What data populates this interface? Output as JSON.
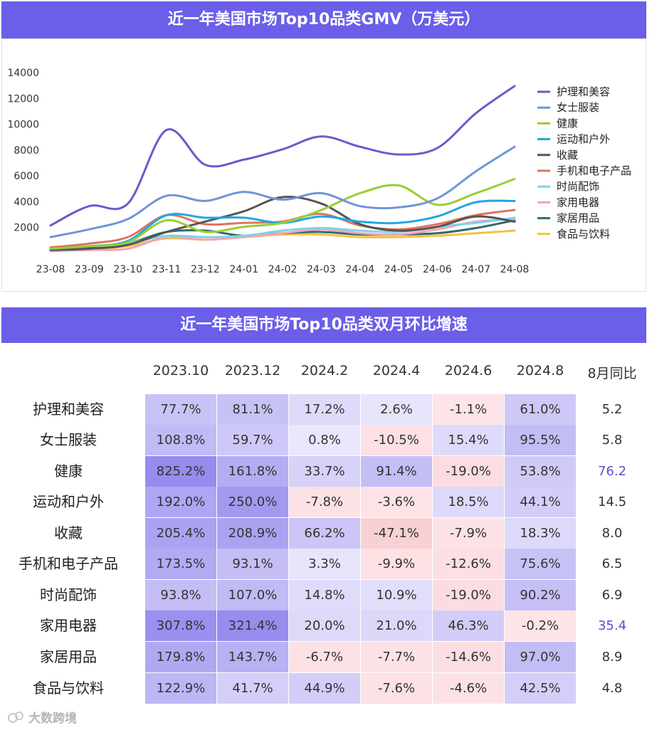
{
  "chart_title": "近一年美国市场Top10品类GMV（万美元）",
  "table_title": "近一年美国市场Top10品类双月环比增速",
  "watermark": "大数跨境",
  "chart_data": [
    {
      "type": "line",
      "title": "近一年美国市场Top10品类GMV（万美元）",
      "x": [
        "23-08",
        "23-09",
        "23-10",
        "23-11",
        "23-12",
        "24-01",
        "24-02",
        "24-03",
        "24-04",
        "24-05",
        "24-06",
        "24-07",
        "24-08"
      ],
      "ylim": [
        0,
        14000
      ],
      "yticks": [
        2000,
        4000,
        6000,
        8000,
        10000,
        12000,
        14000
      ],
      "legend_position": "right",
      "series": [
        {
          "name": "护理和美容",
          "color": "#6a5acd",
          "values": [
            2100,
            3600,
            3800,
            9500,
            6800,
            7200,
            8000,
            9000,
            8200,
            7600,
            8100,
            10800,
            12900
          ]
        },
        {
          "name": "女士服装",
          "color": "#6f95d8",
          "values": [
            1200,
            1800,
            2600,
            4400,
            4000,
            4700,
            4100,
            4600,
            3600,
            3500,
            4200,
            6300,
            8200
          ]
        },
        {
          "name": "健康",
          "color": "#9acd32",
          "values": [
            300,
            500,
            800,
            2500,
            1600,
            2000,
            2300,
            3300,
            4600,
            5200,
            3700,
            4600,
            5700
          ]
        },
        {
          "name": "运动和户外",
          "color": "#1ea8e0",
          "values": [
            300,
            500,
            900,
            2900,
            2700,
            2700,
            2300,
            2800,
            2400,
            2300,
            2800,
            3900,
            4000
          ]
        },
        {
          "name": "收藏",
          "color": "#555555",
          "values": [
            200,
            300,
            600,
            1600,
            2400,
            3200,
            4300,
            3800,
            2200,
            1700,
            2000,
            2800,
            2400
          ]
        },
        {
          "name": "手机和电子产品",
          "color": "#e0735e",
          "values": [
            400,
            700,
            1200,
            2900,
            2200,
            2300,
            2400,
            3000,
            2100,
            1800,
            2200,
            2900,
            3300
          ]
        },
        {
          "name": "时尚配饰",
          "color": "#7fd3e8",
          "values": [
            200,
            300,
            700,
            1300,
            1200,
            1300,
            1700,
            1900,
            1700,
            1600,
            2000,
            2300,
            2700
          ]
        },
        {
          "name": "家用电器",
          "color": "#f4a3b5",
          "values": [
            100,
            200,
            300,
            1200,
            1000,
            1200,
            1500,
            1800,
            1500,
            1400,
            1800,
            2400,
            2600
          ]
        },
        {
          "name": "家居用品",
          "color": "#2e6b6b",
          "values": [
            300,
            400,
            700,
            1600,
            1700,
            1300,
            1500,
            1600,
            1400,
            1400,
            1500,
            1900,
            2500
          ]
        },
        {
          "name": "食品与饮料",
          "color": "#f5c242",
          "values": [
            150,
            250,
            500,
            1100,
            1000,
            1200,
            1400,
            1400,
            1200,
            1200,
            1300,
            1500,
            1700
          ]
        }
      ]
    },
    {
      "type": "table",
      "title": "近一年美国市场Top10品类双月环比增速",
      "columns": [
        "2023.10",
        "2023.12",
        "2024.2",
        "2024.4",
        "2024.6",
        "2024.8",
        "8月同比"
      ],
      "rows": [
        {
          "label": "护理和美容",
          "values": [
            "77.7%",
            "81.1%",
            "17.2%",
            "2.6%",
            "-1.1%",
            "61.0%"
          ],
          "nums": [
            77.7,
            81.1,
            17.2,
            2.6,
            -1.1,
            61.0
          ],
          "yoy": "5.2",
          "highlight": false
        },
        {
          "label": "女士服装",
          "values": [
            "108.8%",
            "59.7%",
            "0.8%",
            "-10.5%",
            "15.4%",
            "95.5%"
          ],
          "nums": [
            108.8,
            59.7,
            0.8,
            -10.5,
            15.4,
            95.5
          ],
          "yoy": "5.8",
          "highlight": false
        },
        {
          "label": "健康",
          "values": [
            "825.2%",
            "161.8%",
            "33.7%",
            "91.4%",
            "-19.0%",
            "53.8%"
          ],
          "nums": [
            825.2,
            161.8,
            33.7,
            91.4,
            -19.0,
            53.8
          ],
          "yoy": "76.2",
          "highlight": true
        },
        {
          "label": "运动和户外",
          "values": [
            "192.0%",
            "250.0%",
            "-7.8%",
            "-3.6%",
            "18.5%",
            "44.1%"
          ],
          "nums": [
            192.0,
            250.0,
            -7.8,
            -3.6,
            18.5,
            44.1
          ],
          "yoy": "14.5",
          "highlight": false
        },
        {
          "label": "收藏",
          "values": [
            "205.4%",
            "208.9%",
            "66.2%",
            "-47.1%",
            "-7.9%",
            "18.3%"
          ],
          "nums": [
            205.4,
            208.9,
            66.2,
            -47.1,
            -7.9,
            18.3
          ],
          "yoy": "8.0",
          "highlight": false
        },
        {
          "label": "手机和电子产品",
          "values": [
            "173.5%",
            "93.1%",
            "3.3%",
            "-9.9%",
            "-12.6%",
            "75.6%"
          ],
          "nums": [
            173.5,
            93.1,
            3.3,
            -9.9,
            -12.6,
            75.6
          ],
          "yoy": "6.5",
          "highlight": false
        },
        {
          "label": "时尚配饰",
          "values": [
            "93.8%",
            "107.0%",
            "14.8%",
            "10.9%",
            "-19.0%",
            "90.2%"
          ],
          "nums": [
            93.8,
            107.0,
            14.8,
            10.9,
            -19.0,
            90.2
          ],
          "yoy": "6.9",
          "highlight": false
        },
        {
          "label": "家用电器",
          "values": [
            "307.8%",
            "321.4%",
            "20.0%",
            "21.0%",
            "46.3%",
            "-0.2%"
          ],
          "nums": [
            307.8,
            321.4,
            20.0,
            21.0,
            46.3,
            -0.2
          ],
          "yoy": "35.4",
          "highlight": true
        },
        {
          "label": "家居用品",
          "values": [
            "179.8%",
            "143.7%",
            "-6.7%",
            "-7.7%",
            "-14.6%",
            "97.0%"
          ],
          "nums": [
            179.8,
            143.7,
            -6.7,
            -7.7,
            -14.6,
            97.0
          ],
          "yoy": "8.9",
          "highlight": false
        },
        {
          "label": "食品与饮料",
          "values": [
            "122.9%",
            "41.7%",
            "44.9%",
            "-7.6%",
            "-4.6%",
            "42.5%"
          ],
          "nums": [
            122.9,
            41.7,
            44.9,
            -7.6,
            -4.6,
            42.5
          ],
          "yoy": "4.8",
          "highlight": false
        }
      ]
    }
  ]
}
